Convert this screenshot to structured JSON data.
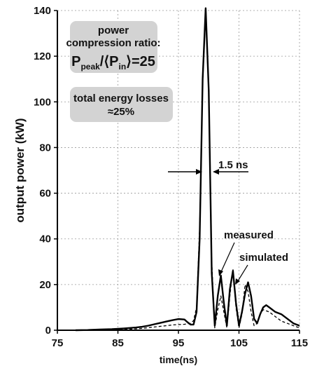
{
  "chart_data": {
    "type": "line",
    "xlabel": "time(ns)",
    "ylabel": "output power (kW)",
    "xlim": [
      75,
      115
    ],
    "ylim": [
      0,
      140
    ],
    "x_ticks": [
      "75",
      "85",
      "95",
      "105",
      "115"
    ],
    "y_ticks": [
      "0",
      "20",
      "40",
      "60",
      "80",
      "100",
      "120",
      "140"
    ],
    "grid": true,
    "series": [
      {
        "name": "measured",
        "style": "solid",
        "color": "#000000",
        "x": [
          78,
          80,
          82,
          84,
          86,
          88,
          89,
          90,
          91,
          92,
          93,
          94,
          95,
          96,
          96.5,
          97,
          97.5,
          98,
          98.5,
          99,
          99.5,
          100,
          100.5,
          101,
          101.5,
          102,
          102.5,
          103,
          103.5,
          104,
          104.5,
          105,
          105.5,
          106,
          106.5,
          107,
          107.5,
          108,
          108.5,
          109,
          109.5,
          110,
          111,
          112,
          113,
          114,
          115
        ],
        "y": [
          0,
          0.1,
          0.3,
          0.5,
          0.8,
          1.2,
          1.5,
          2,
          2.6,
          3.2,
          3.8,
          4.4,
          4.9,
          4.7,
          3.5,
          2.5,
          2.5,
          8,
          40,
          110,
          141,
          105,
          25,
          2,
          15,
          24,
          12,
          2,
          18,
          26,
          12,
          2,
          8,
          16,
          21,
          15,
          5,
          3,
          7,
          10,
          11,
          10,
          8,
          7,
          5,
          3,
          2
        ]
      },
      {
        "name": "simulated",
        "style": "dashed",
        "color": "#000000",
        "x": [
          78,
          82,
          86,
          89,
          91,
          93,
          94,
          95,
          96,
          97,
          97.5,
          98,
          98.5,
          99,
          99.5,
          100,
          100.5,
          101,
          101.5,
          102,
          102.5,
          103,
          103.5,
          104,
          104.5,
          105,
          105.5,
          106,
          106.5,
          107,
          107.5,
          108,
          108.5,
          109,
          110,
          111,
          112,
          113,
          114,
          115
        ],
        "y": [
          0,
          0,
          0.3,
          0.8,
          1.4,
          2,
          2.3,
          2.5,
          2.6,
          3,
          4.2,
          10,
          45,
          108,
          139,
          103,
          30,
          1,
          9,
          15,
          8,
          1,
          15,
          27,
          10,
          1,
          7,
          20,
          17,
          8,
          2,
          3,
          7,
          9,
          8,
          6,
          4,
          3,
          2,
          1
        ]
      }
    ],
    "annotations": {
      "box1_line1": "power",
      "box1_line2": "compression ratio:",
      "box1_formula_main": "P",
      "box1_formula_sub1": "peak",
      "box1_formula_mid": "/⟨P",
      "box1_formula_sub2": "in",
      "box1_formula_end": "⟩=25",
      "box2_line1": "total energy losses",
      "box2_line2": "≈25%",
      "width_label": "1.5 ns",
      "measured_label": "measured",
      "simulated_label": "simulated"
    },
    "box_color": "#d3d3d3"
  }
}
